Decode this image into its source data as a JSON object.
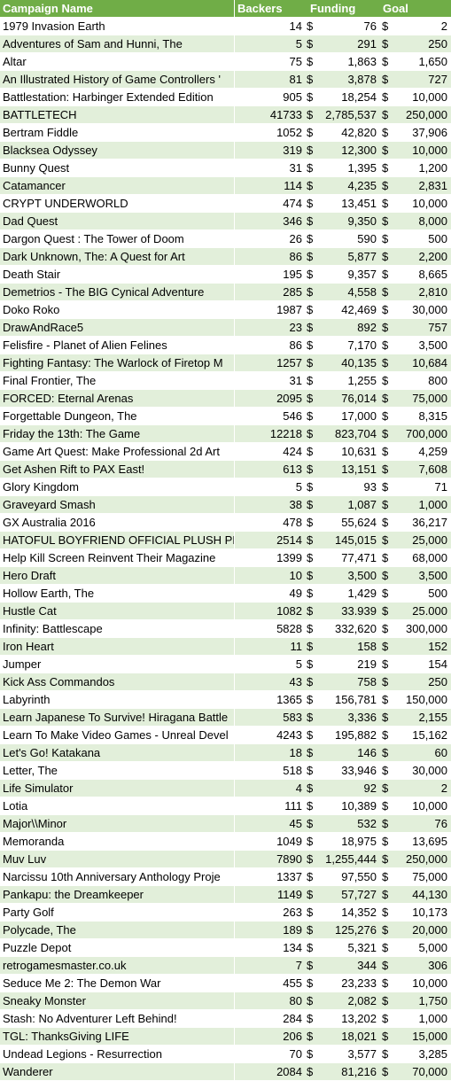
{
  "headers": {
    "name": "Campaign Name",
    "backers": "Backers",
    "funding": "Funding",
    "goal": "Goal"
  },
  "currency": "$",
  "colors": {
    "header": "#70ad47",
    "band": "#e2efda"
  },
  "rows": [
    {
      "name": "1979 Invasion Earth",
      "backers": "14",
      "funding": "76",
      "goal": "2"
    },
    {
      "name": "Adventures of Sam and Hunni, The",
      "backers": "5",
      "funding": "291",
      "goal": "250"
    },
    {
      "name": "Altar",
      "backers": "75",
      "funding": "1,863",
      "goal": "1,650"
    },
    {
      "name": "An Illustrated History of Game Controllers '",
      "backers": "81",
      "funding": "3,878",
      "goal": "727"
    },
    {
      "name": "Battlestation: Harbinger Extended Edition",
      "backers": "905",
      "funding": "18,254",
      "goal": "10,000"
    },
    {
      "name": "BATTLETECH",
      "backers": "41733",
      "funding": "2,785,537",
      "goal": "250,000"
    },
    {
      "name": "Bertram Fiddle",
      "backers": "1052",
      "funding": "42,820",
      "goal": "37,906"
    },
    {
      "name": "Blacksea Odyssey",
      "backers": "319",
      "funding": "12,300",
      "goal": "10,000"
    },
    {
      "name": "Bunny Quest",
      "backers": "31",
      "funding": "1,395",
      "goal": "1,200"
    },
    {
      "name": "Catamancer",
      "backers": "114",
      "funding": "4,235",
      "goal": "2,831"
    },
    {
      "name": "CRYPT UNDERWORLD",
      "backers": "474",
      "funding": "13,451",
      "goal": "10,000"
    },
    {
      "name": "Dad Quest",
      "backers": "346",
      "funding": "9,350",
      "goal": "8,000"
    },
    {
      "name": "Dargon Quest : The Tower of Doom",
      "backers": "26",
      "funding": "590",
      "goal": "500"
    },
    {
      "name": "Dark Unknown, The: A Quest for Art",
      "backers": "86",
      "funding": "5,877",
      "goal": "2,200"
    },
    {
      "name": "Death Stair",
      "backers": "195",
      "funding": "9,357",
      "goal": "8,665"
    },
    {
      "name": "Demetrios - The BIG Cynical Adventure",
      "backers": "285",
      "funding": "4,558",
      "goal": "2,810"
    },
    {
      "name": "Doko Roko",
      "backers": "1987",
      "funding": "42,469",
      "goal": "30,000"
    },
    {
      "name": "DrawAndRace5",
      "backers": "23",
      "funding": "892",
      "goal": "757"
    },
    {
      "name": "Felisfire - Planet of Alien Felines",
      "backers": "86",
      "funding": "7,170",
      "goal": "3,500"
    },
    {
      "name": "Fighting Fantasy: The Warlock of Firetop M",
      "backers": "1257",
      "funding": "40,135",
      "goal": "10,684"
    },
    {
      "name": "Final Frontier, The",
      "backers": "31",
      "funding": "1,255",
      "goal": "800"
    },
    {
      "name": "FORCED: Eternal Arenas",
      "backers": "2095",
      "funding": "76,014",
      "goal": "75,000"
    },
    {
      "name": "Forgettable Dungeon, The",
      "backers": "546",
      "funding": "17,000",
      "goal": "8,315"
    },
    {
      "name": "Friday the 13th: The Game",
      "backers": "12218",
      "funding": "823,704",
      "goal": "700,000"
    },
    {
      "name": "Game Art Quest: Make Professional 2d Art",
      "backers": "424",
      "funding": "10,631",
      "goal": "4,259"
    },
    {
      "name": "Get Ashen Rift to PAX East!",
      "backers": "613",
      "funding": "13,151",
      "goal": "7,608"
    },
    {
      "name": "Glory Kingdom",
      "backers": "5",
      "funding": "93",
      "goal": "71"
    },
    {
      "name": "Graveyard Smash",
      "backers": "38",
      "funding": "1,087",
      "goal": "1,000"
    },
    {
      "name": "GX Australia 2016",
      "backers": "478",
      "funding": "55,624",
      "goal": "36,217"
    },
    {
      "name": "HATOFUL BOYFRIEND OFFICIAL PLUSH PROJ",
      "backers": "2514",
      "funding": "145,015",
      "goal": "25,000"
    },
    {
      "name": "Help Kill Screen Reinvent Their Magazine",
      "backers": "1399",
      "funding": "77,471",
      "goal": "68,000"
    },
    {
      "name": "Hero Draft",
      "backers": "10",
      "funding": "3,500",
      "goal": "3,500"
    },
    {
      "name": "Hollow Earth, The",
      "backers": "49",
      "funding": "1,429",
      "goal": "500"
    },
    {
      "name": "Hustle Cat",
      "backers": "1082",
      "funding": "33.939",
      "goal": "25.000"
    },
    {
      "name": "Infinity: Battlescape",
      "backers": "5828",
      "funding": "332,620",
      "goal": "300,000"
    },
    {
      "name": "Iron Heart",
      "backers": "11",
      "funding": "158",
      "goal": "152"
    },
    {
      "name": "Jumper",
      "backers": "5",
      "funding": "219",
      "goal": "154"
    },
    {
      "name": "Kick Ass Commandos",
      "backers": "43",
      "funding": "758",
      "goal": "250"
    },
    {
      "name": "Labyrinth",
      "backers": "1365",
      "funding": "156,781",
      "goal": "150,000"
    },
    {
      "name": "Learn Japanese To Survive! Hiragana Battle",
      "backers": "583",
      "funding": "3,336",
      "goal": "2,155"
    },
    {
      "name": "Learn To Make Video Games - Unreal Devel",
      "backers": "4243",
      "funding": "195,882",
      "goal": "15,162"
    },
    {
      "name": "Let's Go! Katakana",
      "backers": "18",
      "funding": "146",
      "goal": "60"
    },
    {
      "name": "Letter, The",
      "backers": "518",
      "funding": "33,946",
      "goal": "30,000"
    },
    {
      "name": "Life Simulator",
      "backers": "4",
      "funding": "92",
      "goal": "2"
    },
    {
      "name": "Lotia",
      "backers": "111",
      "funding": "10,389",
      "goal": "10,000"
    },
    {
      "name": "Major\\\\Minor",
      "backers": "45",
      "funding": "532",
      "goal": "76"
    },
    {
      "name": "Memoranda",
      "backers": "1049",
      "funding": "18,975",
      "goal": "13,695"
    },
    {
      "name": "Muv Luv",
      "backers": "7890",
      "funding": "1,255,444",
      "goal": "250,000"
    },
    {
      "name": "Narcissu 10th Anniversary Anthology Proje",
      "backers": "1337",
      "funding": "97,550",
      "goal": "75,000"
    },
    {
      "name": "Pankapu: the Dreamkeeper",
      "backers": "1149",
      "funding": "57,727",
      "goal": "44,130"
    },
    {
      "name": "Party Golf",
      "backers": "263",
      "funding": "14,352",
      "goal": "10,173"
    },
    {
      "name": "Polycade, The",
      "backers": "189",
      "funding": "125,276",
      "goal": "20,000"
    },
    {
      "name": "Puzzle Depot",
      "backers": "134",
      "funding": "5,321",
      "goal": "5,000"
    },
    {
      "name": "retrogamesmaster.co.uk",
      "backers": "7",
      "funding": "344",
      "goal": "306"
    },
    {
      "name": "Seduce Me 2: The Demon War",
      "backers": "455",
      "funding": "23,233",
      "goal": "10,000"
    },
    {
      "name": "Sneaky Monster",
      "backers": "80",
      "funding": "2,082",
      "goal": "1,750"
    },
    {
      "name": "Stash: No Adventurer Left Behind!",
      "backers": "284",
      "funding": "13,202",
      "goal": "1,000"
    },
    {
      "name": "TGL: ThanksGiving LIFE",
      "backers": "206",
      "funding": "18,021",
      "goal": "15,000"
    },
    {
      "name": "Undead Legions - Resurrection",
      "backers": "70",
      "funding": "3,577",
      "goal": "3,285"
    },
    {
      "name": "Wanderer",
      "backers": "2084",
      "funding": "81,216",
      "goal": "70,000"
    }
  ]
}
